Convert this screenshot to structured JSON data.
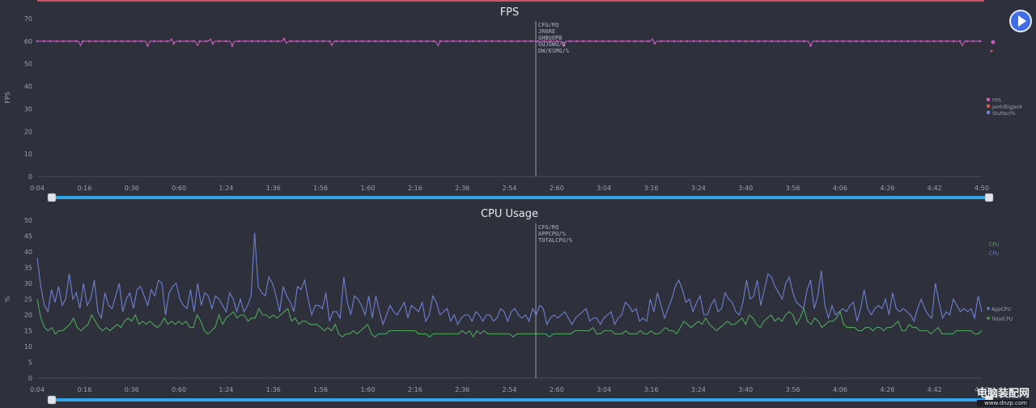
{
  "fps_chart": {
    "chart_data": {
      "type": "line",
      "title": "FPS",
      "ylabel": "FPS",
      "ylim": [
        0,
        70
      ],
      "yticks": [
        "0",
        "10",
        "20",
        "30",
        "40",
        "50",
        "60",
        "70"
      ],
      "xticks": [
        "0:04",
        "0:16",
        "0:36",
        "0:60",
        "1:24",
        "1:36",
        "1:56",
        "1:60",
        "2:16",
        "2:36",
        "2:54",
        "2:60",
        "3:04",
        "3:16",
        "3:24",
        "3:40",
        "3:56",
        "4:06",
        "4:26",
        "4:42",
        "4:50"
      ],
      "series_color": "#c55bbd",
      "values": [
        60,
        60,
        60,
        60,
        60,
        60,
        60,
        60,
        60,
        60,
        60,
        60,
        60,
        60,
        60,
        60,
        60,
        60,
        60,
        60,
        58,
        60,
        60,
        60,
        60,
        60,
        60,
        60,
        60,
        60,
        60,
        60,
        60,
        60,
        60,
        60,
        60,
        60,
        60,
        60,
        60,
        60,
        60,
        60,
        60,
        60,
        60,
        60,
        60,
        60,
        60,
        58,
        60,
        60,
        60,
        60,
        60,
        60,
        60,
        60,
        60,
        60,
        61,
        59,
        60,
        60,
        60,
        60,
        60,
        60,
        60,
        60,
        60,
        60,
        58,
        60,
        60,
        60,
        60,
        60,
        61,
        59,
        60,
        60,
        60,
        60,
        60,
        60,
        60,
        60,
        58,
        60,
        60,
        60,
        60,
        60,
        60,
        60,
        60,
        60,
        60,
        60,
        60,
        60,
        60,
        60,
        60,
        60,
        60,
        60,
        60,
        60,
        60,
        60,
        61,
        59,
        60,
        60,
        60,
        60,
        60,
        60,
        60,
        60,
        60,
        60,
        60,
        60,
        60,
        60,
        60,
        60,
        60,
        60,
        60,
        60,
        58,
        60,
        60,
        60,
        60,
        60,
        60,
        60,
        60,
        60,
        60,
        60,
        60,
        60,
        60,
        60,
        60,
        60,
        60,
        60,
        60,
        60,
        60,
        60,
        60,
        60,
        60,
        60,
        60,
        60,
        60,
        60,
        60,
        60,
        60,
        60,
        60,
        60,
        60,
        60,
        60,
        60,
        60,
        60,
        60,
        60,
        60,
        60,
        60,
        58,
        60,
        60,
        60,
        60,
        60,
        60,
        60,
        60,
        60,
        60,
        60,
        60,
        60,
        60,
        60,
        60,
        60,
        60,
        60,
        60,
        60,
        60,
        60,
        60,
        60,
        60,
        60,
        60,
        60,
        60,
        60,
        60,
        60,
        60,
        60,
        60,
        60,
        60,
        60,
        60,
        60,
        60,
        60,
        60,
        60,
        60,
        60,
        60,
        60,
        60,
        60,
        60,
        60,
        60,
        60,
        60,
        60,
        58,
        60,
        60,
        60,
        60,
        60,
        60,
        60,
        60,
        60,
        60,
        60,
        60,
        60,
        60,
        60,
        60,
        60,
        60,
        60,
        60,
        60,
        60,
        60,
        60,
        60,
        60,
        60,
        60,
        60,
        60,
        60,
        60,
        60,
        60,
        60,
        60,
        60,
        60,
        60,
        60,
        61,
        59,
        60,
        60,
        60,
        60,
        60,
        60,
        60,
        60,
        60,
        60,
        60,
        60,
        60,
        60,
        60,
        60,
        60,
        60,
        60,
        60,
        60,
        60,
        60,
        60,
        60,
        60,
        60,
        60,
        60,
        60,
        60,
        60,
        60,
        60,
        60,
        60,
        60,
        60,
        60,
        60,
        60,
        60,
        60,
        60,
        60,
        60,
        60,
        60,
        60,
        60,
        60,
        60,
        60,
        60,
        60,
        60,
        60,
        60,
        60,
        60,
        60,
        60,
        60,
        60,
        60,
        60,
        60,
        60,
        60,
        60,
        60,
        58,
        60,
        60,
        60,
        60,
        60,
        60,
        60,
        60,
        60,
        60,
        60,
        60,
        60,
        60,
        60,
        60,
        60,
        60,
        60,
        60,
        60,
        60,
        60,
        60,
        60,
        60,
        60,
        60,
        60,
        60,
        60,
        60,
        60,
        60,
        60,
        60,
        60,
        60,
        60,
        60,
        60,
        60,
        60,
        60,
        60,
        60,
        60,
        60,
        60,
        60,
        60,
        60,
        60,
        60,
        60,
        60,
        60,
        60,
        60,
        60,
        60,
        60,
        60,
        60,
        60,
        60,
        60,
        60,
        60,
        58,
        60,
        60,
        60,
        60,
        60,
        60,
        60,
        60,
        60
      ]
    },
    "tooltip_lines": [
      "CFG/RQ",
      "JR6RE",
      "GHBUOPB",
      "OUJGWU/D",
      "DW/ESMG/%"
    ],
    "legend_items": [
      "FPS",
      "Jank/BigJank",
      "Stutter/%"
    ]
  },
  "cpu_chart": {
    "chart_data": {
      "type": "line",
      "title": "CPU Usage",
      "ylabel": "%",
      "ylim": [
        0,
        50
      ],
      "yticks": [
        "0",
        "5",
        "10",
        "15",
        "20",
        "25",
        "30",
        "35",
        "40",
        "45",
        "50"
      ],
      "xticks": [
        "0:04",
        "0:16",
        "0:36",
        "0:60",
        "1:24",
        "1:36",
        "1:56",
        "1:60",
        "2:16",
        "2:36",
        "2:54",
        "2:60",
        "3:04",
        "3:16",
        "3:24",
        "3:40",
        "3:56",
        "4:06",
        "4:26",
        "4:42",
        "4:50"
      ],
      "series": [
        {
          "name": "AppCPU",
          "color": "#6f7fd0",
          "values": [
            38,
            29,
            23,
            21,
            28,
            24,
            29,
            23,
            25,
            33,
            25,
            27,
            22,
            30,
            23,
            25,
            31,
            21,
            19,
            27,
            23,
            22,
            26,
            30,
            21,
            25,
            27,
            22,
            28,
            29,
            26,
            23,
            28,
            26,
            31,
            30,
            20,
            27,
            29,
            30,
            25,
            23,
            22,
            28,
            21,
            30,
            23,
            27,
            26,
            22,
            26,
            25,
            23,
            21,
            27,
            25,
            21,
            25,
            21,
            23,
            26,
            46,
            29,
            27,
            26,
            32,
            30,
            26,
            21,
            29,
            26,
            24,
            21,
            29,
            28,
            31,
            25,
            20,
            23,
            23,
            22,
            27,
            18,
            21,
            21,
            19,
            32,
            24,
            20,
            26,
            25,
            23,
            20,
            26,
            19,
            26,
            21,
            17,
            20,
            23,
            21,
            20,
            22,
            24,
            19,
            23,
            22,
            21,
            24,
            18,
            20,
            26,
            24,
            20,
            21,
            22,
            18,
            20,
            17,
            19,
            20,
            20,
            18,
            21,
            20,
            18,
            20,
            20,
            18,
            19,
            22,
            21,
            18,
            21,
            22,
            20,
            19,
            20,
            18,
            22,
            20,
            23,
            22,
            17,
            19,
            20,
            19,
            20,
            21,
            19,
            17,
            19,
            20,
            21,
            22,
            18,
            19,
            19,
            17,
            19,
            20,
            21,
            17,
            19,
            20,
            24,
            23,
            21,
            22,
            18,
            19,
            18,
            25,
            21,
            27,
            23,
            19,
            22,
            25,
            29,
            31,
            28,
            24,
            25,
            21,
            24,
            26,
            20,
            20,
            23,
            25,
            21,
            22,
            27,
            25,
            24,
            21,
            20,
            24,
            31,
            25,
            26,
            31,
            23,
            28,
            33,
            32,
            29,
            27,
            25,
            30,
            32,
            27,
            24,
            23,
            22,
            28,
            31,
            22,
            26,
            34,
            23,
            19,
            23,
            20,
            21,
            22,
            21,
            23,
            24,
            18,
            22,
            28,
            22,
            20,
            22,
            23,
            22,
            25,
            20,
            27,
            22,
            21,
            22,
            21,
            20,
            18,
            22,
            25,
            22,
            20,
            19,
            30,
            24,
            19,
            21,
            20,
            25,
            23,
            21,
            22,
            21,
            22,
            19,
            26,
            21
          ]
        },
        {
          "name": "TotalCPU",
          "color": "#4fa55a",
          "values": [
            25,
            19,
            16,
            15,
            16,
            14,
            15,
            15,
            16,
            17,
            19,
            16,
            15,
            16,
            17,
            20,
            18,
            16,
            15,
            16,
            15,
            16,
            17,
            16,
            18,
            19,
            18,
            20,
            17,
            18,
            17,
            18,
            17,
            16,
            17,
            19,
            17,
            18,
            17,
            18,
            17,
            18,
            16,
            16,
            20,
            18,
            15,
            14,
            15,
            16,
            20,
            17,
            19,
            20,
            21,
            19,
            20,
            20,
            18,
            19,
            19,
            22,
            20,
            20,
            19,
            20,
            19,
            20,
            21,
            22,
            18,
            19,
            17,
            18,
            18,
            17,
            17,
            17,
            16,
            15,
            16,
            15,
            17,
            14,
            13,
            14,
            14,
            15,
            14,
            15,
            16,
            17,
            14,
            13,
            14,
            14,
            14,
            15,
            15,
            15,
            15,
            15,
            15,
            15,
            15,
            14,
            14,
            14,
            13,
            14,
            14,
            14,
            14,
            14,
            14,
            14,
            14,
            15,
            14,
            15,
            13,
            15,
            14,
            15,
            14,
            14,
            14,
            14,
            14,
            14,
            14,
            13,
            14,
            14,
            14,
            14,
            14,
            14,
            14,
            14,
            14,
            13,
            14,
            14,
            14,
            14,
            14,
            14,
            15,
            15,
            15,
            15,
            15,
            16,
            14,
            14,
            15,
            15,
            15,
            14,
            14,
            14,
            15,
            14,
            14,
            14,
            15,
            14,
            14,
            15,
            14,
            14,
            15,
            16,
            15,
            15,
            14,
            16,
            18,
            17,
            16,
            17,
            18,
            17,
            19,
            17,
            16,
            15,
            16,
            17,
            18,
            17,
            17,
            18,
            19,
            17,
            20,
            19,
            17,
            16,
            18,
            19,
            20,
            18,
            19,
            18,
            20,
            21,
            20,
            17,
            19,
            22,
            18,
            17,
            19,
            18,
            16,
            17,
            18,
            18,
            19,
            21,
            17,
            16,
            16,
            16,
            15,
            15,
            16,
            16,
            15,
            16,
            16,
            15,
            16,
            16,
            17,
            18,
            15,
            15,
            17,
            16,
            16,
            15,
            15,
            15,
            14,
            15,
            16,
            14,
            14,
            14,
            14,
            15,
            15,
            15,
            15,
            15,
            14,
            14,
            15
          ]
        }
      ]
    },
    "tooltip_lines": [
      "CFG/RQ",
      "APPCPU/%",
      "TOTALCPU/%"
    ],
    "legend_top": [
      "CPU",
      "CPU"
    ],
    "legend_items": [
      "AppCPU",
      "TotalCPU"
    ]
  },
  "watermark": {
    "line1": "电脑装配网",
    "line2": "www.dnzp.com"
  },
  "colors": {
    "slider": "#2ea6e6",
    "background": "#2e313c",
    "cursor": "#9aa0ab"
  }
}
